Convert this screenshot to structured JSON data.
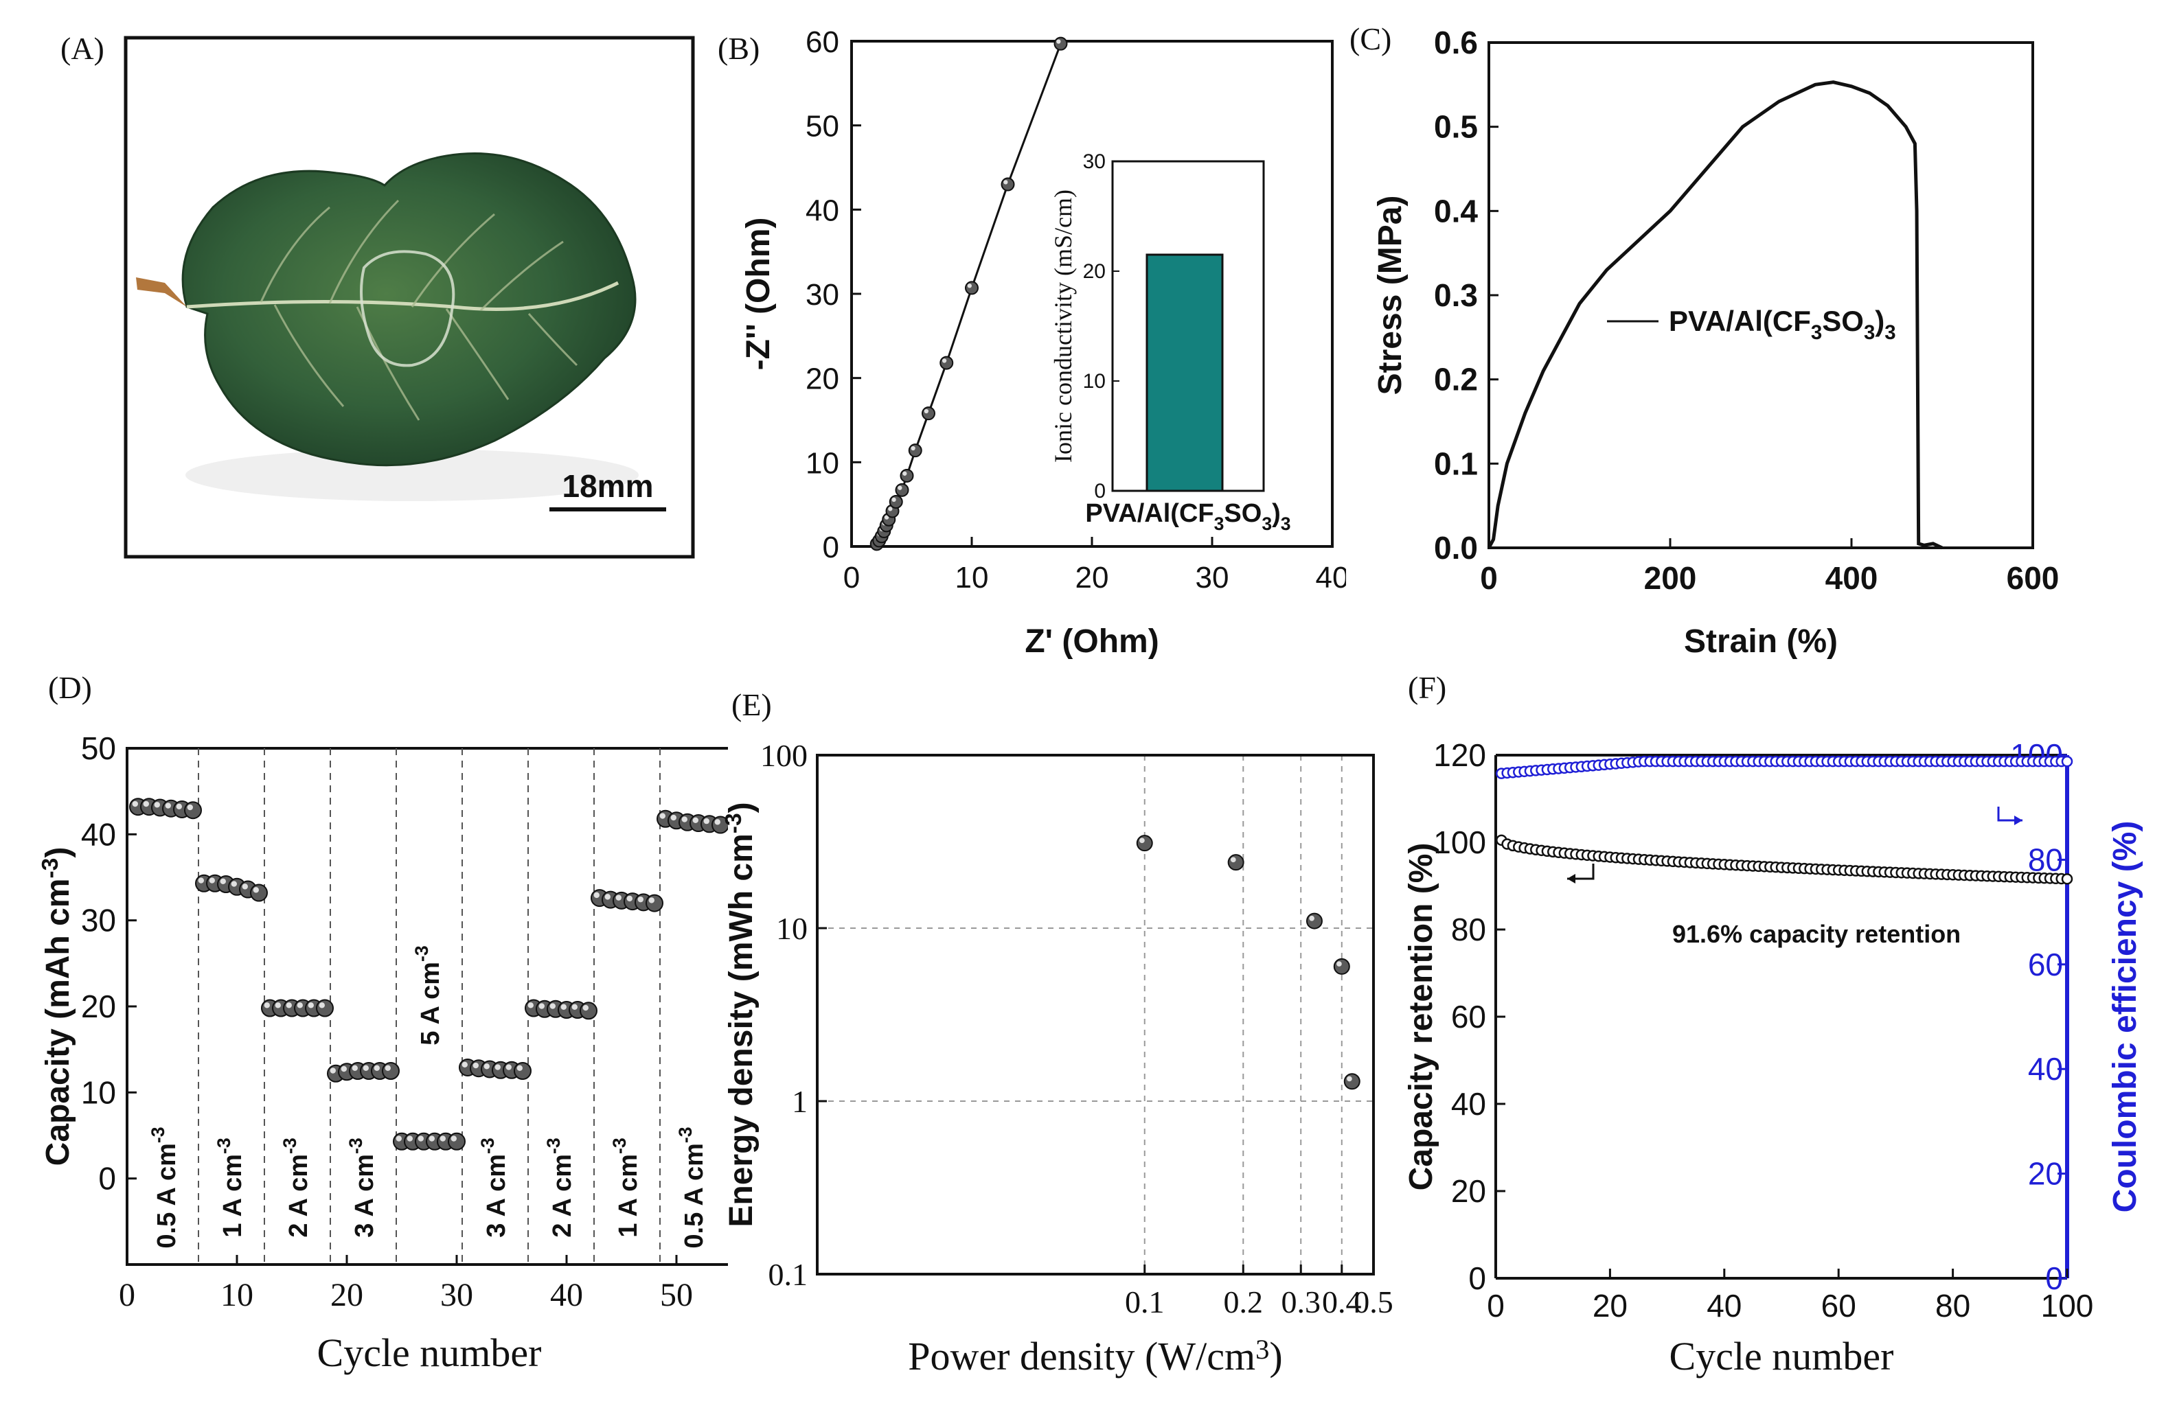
{
  "panels": {
    "a": {
      "label": "(A)",
      "scale_bar": "18mm"
    },
    "b": {
      "label": "(B)"
    },
    "c": {
      "label": "(C)"
    },
    "d": {
      "label": "(D)",
      "rate_labels": [
        "0.5 A cm⁻³",
        "1 A cm⁻³",
        "2 A cm⁻³",
        "3 A cm⁻³",
        "5 A cm⁻³",
        "3 A cm⁻³",
        "2 A cm⁻³",
        "1 A cm⁻³",
        "0.5 A cm⁻³"
      ]
    },
    "e": {
      "label": "(E)"
    },
    "f": {
      "label": "(F)",
      "annotation": "91.6% capacity retention"
    }
  },
  "chart_data": [
    {
      "id": "B",
      "type": "scatter",
      "xlabel": "Z' (Ohm)",
      "ylabel": "-Z'' (Ohm)",
      "xlim": [
        0,
        40
      ],
      "ylim": [
        0,
        60
      ],
      "xticks": [
        0,
        10,
        20,
        30,
        40
      ],
      "yticks": [
        0,
        10,
        20,
        30,
        40,
        50,
        60
      ],
      "series": [
        {
          "x": [
            2.1,
            2.3,
            2.5,
            2.7,
            2.9,
            3.1,
            3.4,
            3.7,
            4.2,
            4.6,
            5.3,
            6.4,
            7.9,
            10.0,
            13.0,
            17.4
          ],
          "y": [
            0.3,
            0.7,
            1.2,
            1.8,
            2.5,
            3.2,
            4.2,
            5.3,
            6.7,
            8.4,
            11.4,
            15.8,
            21.8,
            30.7,
            43.0,
            59.7
          ]
        }
      ],
      "inset": {
        "type": "bar",
        "categories": [
          "PVA/Al(CF₃SO₃)₃"
        ],
        "values": [
          21.5
        ],
        "ylabel": "Ionic conductivity (mS/cm)",
        "ylim": [
          0,
          30
        ],
        "yticks": [
          0,
          10,
          20,
          30
        ],
        "color": "#14817d"
      }
    },
    {
      "id": "C",
      "type": "line",
      "xlabel": "Strain (%)",
      "ylabel": "Stress (MPa)",
      "xlim": [
        0,
        600
      ],
      "ylim": [
        0,
        0.6
      ],
      "xticks": [
        0,
        200,
        400,
        600
      ],
      "yticks": [
        0.0,
        0.1,
        0.2,
        0.3,
        0.4,
        0.5,
        0.6
      ],
      "ytick_labels": [
        "0.0",
        "0.1",
        "0.2",
        "0.3",
        "0.4",
        "0.5",
        "0.6"
      ],
      "legend": "top-right",
      "series": [
        {
          "name": "PVA/Al(CF₃SO₃)₃",
          "x": [
            0,
            5,
            10,
            20,
            40,
            60,
            80,
            100,
            130,
            160,
            200,
            240,
            280,
            320,
            360,
            380,
            400,
            420,
            440,
            460,
            470,
            472,
            474,
            480,
            490,
            500
          ],
          "y": [
            0.0,
            0.01,
            0.05,
            0.1,
            0.16,
            0.21,
            0.25,
            0.29,
            0.33,
            0.36,
            0.4,
            0.45,
            0.5,
            0.53,
            0.55,
            0.553,
            0.548,
            0.54,
            0.525,
            0.5,
            0.48,
            0.4,
            0.005,
            0.003,
            0.005,
            0.0
          ]
        }
      ]
    },
    {
      "id": "D",
      "type": "scatter",
      "xlabel": "Cycle number",
      "ylabel": "Capacity (mAh cm⁻³)",
      "xlim": [
        0,
        55
      ],
      "ylim": [
        -10,
        50
      ],
      "xticks": [
        0,
        10,
        20,
        30,
        40,
        50
      ],
      "yticks": [
        0,
        10,
        20,
        30,
        40,
        50
      ],
      "segment_boundaries": [
        6.5,
        12.5,
        18.5,
        24.5,
        30.5,
        36.5,
        42.5,
        48.5
      ],
      "series": [
        {
          "x": [
            1,
            2,
            3,
            4,
            5,
            6,
            7,
            8,
            9,
            10,
            11,
            12,
            13,
            14,
            15,
            16,
            17,
            18,
            19,
            20,
            21,
            22,
            23,
            24,
            25,
            26,
            27,
            28,
            29,
            30,
            31,
            32,
            33,
            34,
            35,
            36,
            37,
            38,
            39,
            40,
            41,
            42,
            43,
            44,
            45,
            46,
            47,
            48,
            49,
            50,
            51,
            52,
            53,
            54
          ],
          "y": [
            43.2,
            43.2,
            43.1,
            43.0,
            42.9,
            42.8,
            34.3,
            34.3,
            34.2,
            33.9,
            33.6,
            33.2,
            19.8,
            19.8,
            19.8,
            19.8,
            19.8,
            19.8,
            12.2,
            12.4,
            12.5,
            12.5,
            12.5,
            12.5,
            4.3,
            4.3,
            4.3,
            4.3,
            4.3,
            4.3,
            12.9,
            12.8,
            12.7,
            12.6,
            12.6,
            12.5,
            19.8,
            19.7,
            19.7,
            19.6,
            19.6,
            19.5,
            32.6,
            32.4,
            32.3,
            32.2,
            32.1,
            32.0,
            41.8,
            41.6,
            41.4,
            41.3,
            41.2,
            41.1
          ]
        }
      ]
    },
    {
      "id": "E",
      "type": "scatter",
      "xlabel": "Power density (W/cm³)",
      "ylabel": "Energy density (mWh cm⁻³)",
      "xscale": "log",
      "yscale": "log",
      "xlim": [
        0.01,
        0.5
      ],
      "ylim": [
        0.1,
        100
      ],
      "xticks": [
        0.1,
        0.2,
        0.3,
        0.4,
        0.5
      ],
      "xtick_labels": [
        "0.1",
        "0.2",
        "0.3",
        "0.4",
        "0.5"
      ],
      "yticks": [
        0.1,
        1,
        10,
        100
      ],
      "ytick_labels": [
        "0.1",
        "1",
        "10",
        "100"
      ],
      "grid": true,
      "series": [
        {
          "x": [
            0.1,
            0.19,
            0.33,
            0.4,
            0.43
          ],
          "y": [
            31,
            24,
            11,
            6,
            1.3
          ]
        }
      ]
    },
    {
      "id": "F",
      "type": "scatter",
      "xlabel": "Cycle number",
      "ylabel": "Capacity retention (%)",
      "y2label": "Coulombic efficiency (%)",
      "xlim": [
        0,
        100
      ],
      "ylim": [
        0,
        120
      ],
      "y2lim": [
        0,
        100
      ],
      "xticks": [
        0,
        20,
        40,
        60,
        80,
        100
      ],
      "yticks": [
        0,
        20,
        40,
        60,
        80,
        100,
        120
      ],
      "y2ticks": [
        0,
        20,
        40,
        60,
        80,
        100
      ],
      "colors": {
        "retention": "#111111",
        "efficiency": "#1f1fd6"
      },
      "series": [
        {
          "axis": "left",
          "x_start": 1,
          "x_end": 100,
          "y_start": 100.5,
          "y_end": 91.6
        },
        {
          "axis": "right",
          "x_start": 1,
          "x_end": 100,
          "y_start": 96.5,
          "y_end": 98.8
        }
      ]
    }
  ]
}
